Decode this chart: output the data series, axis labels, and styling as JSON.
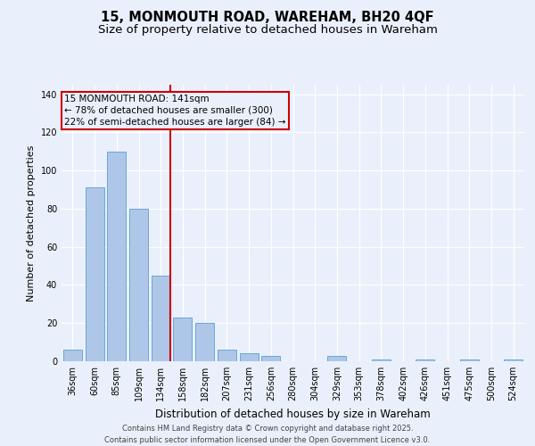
{
  "title": "15, MONMOUTH ROAD, WAREHAM, BH20 4QF",
  "subtitle": "Size of property relative to detached houses in Wareham",
  "xlabel": "Distribution of detached houses by size in Wareham",
  "ylabel": "Number of detached properties",
  "categories": [
    "36sqm",
    "60sqm",
    "85sqm",
    "109sqm",
    "134sqm",
    "158sqm",
    "182sqm",
    "207sqm",
    "231sqm",
    "256sqm",
    "280sqm",
    "304sqm",
    "329sqm",
    "353sqm",
    "378sqm",
    "402sqm",
    "426sqm",
    "451sqm",
    "475sqm",
    "500sqm",
    "524sqm"
  ],
  "values": [
    6,
    91,
    110,
    80,
    45,
    23,
    20,
    6,
    4,
    3,
    0,
    0,
    3,
    0,
    1,
    0,
    1,
    0,
    1,
    0,
    1
  ],
  "bar_color": "#aec6e8",
  "bar_edge_color": "#5a9fd4",
  "bg_color": "#eaf0fb",
  "grid_color": "#ffffff",
  "vline_color": "#cc0000",
  "annotation_title": "15 MONMOUTH ROAD: 141sqm",
  "annotation_line1": "← 78% of detached houses are smaller (300)",
  "annotation_line2": "22% of semi-detached houses are larger (84) →",
  "annotation_box_color": "#cc0000",
  "ylim": [
    0,
    145
  ],
  "yticks": [
    0,
    20,
    40,
    60,
    80,
    100,
    120,
    140
  ],
  "footer1": "Contains HM Land Registry data © Crown copyright and database right 2025.",
  "footer2": "Contains public sector information licensed under the Open Government Licence v3.0.",
  "title_fontsize": 10.5,
  "subtitle_fontsize": 9.5,
  "xlabel_fontsize": 8.5,
  "ylabel_fontsize": 8,
  "tick_fontsize": 7,
  "annotation_fontsize": 7.5,
  "footer_fontsize": 6
}
